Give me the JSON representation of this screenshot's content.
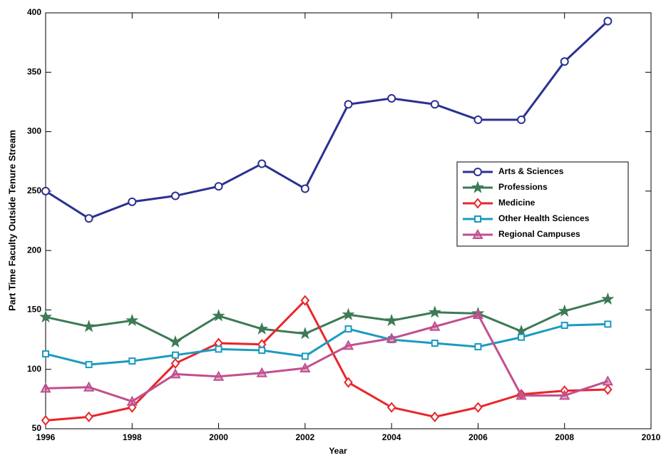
{
  "chart_data": {
    "type": "line",
    "xlabel": "Year",
    "ylabel": "Part Time Faculty Outside Tenure Stream",
    "x": [
      1996,
      1997,
      1998,
      1999,
      2000,
      2001,
      2002,
      2003,
      2004,
      2005,
      2006,
      2007,
      2008,
      2009
    ],
    "series": [
      {
        "name": "Arts & Sciences",
        "color": "#2b3191",
        "marker": "circle",
        "values": [
          250,
          227,
          241,
          246,
          254,
          273,
          252,
          323,
          328,
          323,
          310,
          310,
          359,
          393
        ]
      },
      {
        "name": "Professions",
        "color": "#3d7a55",
        "marker": "star",
        "values": [
          144,
          136,
          141,
          123,
          145,
          134,
          130,
          146,
          141,
          148,
          147,
          132,
          149,
          159
        ]
      },
      {
        "name": "Medicine",
        "color": "#e8262a",
        "marker": "diamond",
        "values": [
          57,
          60,
          68,
          105,
          122,
          121,
          158,
          89,
          68,
          60,
          68,
          79,
          82,
          83
        ]
      },
      {
        "name": "Other Health Sciences",
        "color": "#1a9bc0",
        "marker": "square",
        "values": [
          113,
          104,
          107,
          112,
          117,
          116,
          111,
          134,
          125,
          122,
          119,
          127,
          137,
          138
        ]
      },
      {
        "name": "Regional Campuses",
        "color": "#c0508f",
        "marker": "triangle",
        "values": [
          84,
          85,
          73,
          96,
          94,
          97,
          101,
          120,
          126,
          136,
          146,
          78,
          78,
          90
        ]
      }
    ],
    "xlim": [
      1996,
      2010
    ],
    "xticks": [
      1996,
      1998,
      2000,
      2002,
      2004,
      2006,
      2008,
      2010
    ],
    "ylim": [
      50,
      400
    ],
    "yticks": [
      50,
      100,
      150,
      200,
      250,
      300,
      350,
      400
    ],
    "grid": false,
    "legend": "right"
  }
}
